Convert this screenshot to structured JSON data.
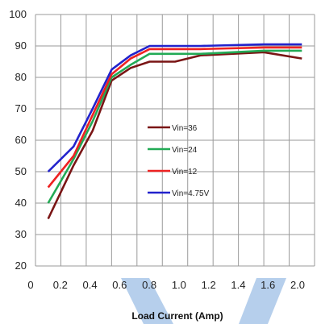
{
  "chart_data": {
    "type": "line",
    "title": "",
    "xlabel": "Load Current (Amp)",
    "ylabel": "",
    "xlim": [
      0,
      2.2
    ],
    "ylim": [
      20,
      100
    ],
    "x_ticks": [
      "0",
      "0.2",
      "0.4",
      "0.6",
      "0.8",
      "1.0",
      "1.2",
      "1.4",
      "1.6",
      "2.0"
    ],
    "y_ticks": [
      "20",
      "30",
      "40",
      "50",
      "60",
      "70",
      "80",
      "90",
      "100"
    ],
    "grid": true,
    "legend_position": "center",
    "series": [
      {
        "name": "Vin=36",
        "color": "#7a1515",
        "x": [
          0.1,
          0.3,
          0.45,
          0.6,
          0.75,
          0.9,
          1.1,
          1.3,
          1.8,
          2.1
        ],
        "y": [
          35,
          52,
          63,
          79,
          83,
          85,
          85,
          87,
          88,
          86
        ]
      },
      {
        "name": "Vin=24",
        "color": "#22aa55",
        "x": [
          0.1,
          0.3,
          0.45,
          0.6,
          0.75,
          0.9,
          1.1,
          1.3,
          1.8,
          2.1
        ],
        "y": [
          40,
          54,
          66,
          80,
          84,
          87.5,
          87.5,
          87.5,
          88.5,
          88.5
        ]
      },
      {
        "name": "Vin=12",
        "color": "#ee2222",
        "x": [
          0.1,
          0.3,
          0.45,
          0.6,
          0.75,
          0.9,
          1.1,
          1.3,
          1.8,
          2.1
        ],
        "y": [
          45,
          55,
          68,
          81,
          86,
          89,
          89,
          89,
          89.5,
          89.5
        ]
      },
      {
        "name": "Vin=4.75V",
        "color": "#2222cc",
        "x": [
          0.1,
          0.3,
          0.45,
          0.6,
          0.75,
          0.9,
          1.1,
          1.3,
          1.8,
          2.1
        ],
        "y": [
          50,
          58,
          70,
          82.5,
          87,
          90,
          90,
          90,
          90.5,
          90.5
        ]
      }
    ]
  }
}
